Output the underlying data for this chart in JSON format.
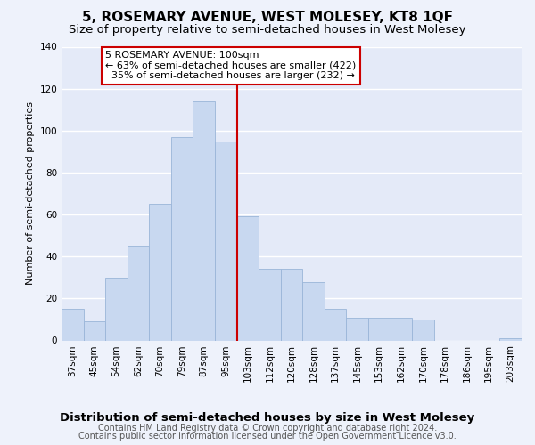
{
  "title": "5, ROSEMARY AVENUE, WEST MOLESEY, KT8 1QF",
  "subtitle": "Size of property relative to semi-detached houses in West Molesey",
  "xlabel": "Distribution of semi-detached houses by size in West Molesey",
  "ylabel": "Number of semi-detached properties",
  "footer_line1": "Contains HM Land Registry data © Crown copyright and database right 2024.",
  "footer_line2": "Contains public sector information licensed under the Open Government Licence v3.0.",
  "categories": [
    "37sqm",
    "45sqm",
    "54sqm",
    "62sqm",
    "70sqm",
    "79sqm",
    "87sqm",
    "95sqm",
    "103sqm",
    "112sqm",
    "120sqm",
    "128sqm",
    "137sqm",
    "145sqm",
    "153sqm",
    "162sqm",
    "170sqm",
    "178sqm",
    "186sqm",
    "195sqm",
    "203sqm"
  ],
  "values": [
    15,
    9,
    30,
    45,
    65,
    97,
    114,
    95,
    59,
    34,
    34,
    28,
    15,
    11,
    11,
    11,
    10,
    0,
    0,
    0,
    1
  ],
  "bar_color": "#c8d8f0",
  "bar_edge_color": "#9ab5d8",
  "marker_color": "#cc0000",
  "marker_label": "5 ROSEMARY AVENUE: 100sqm",
  "smaller_pct": 63,
  "smaller_count": 422,
  "larger_pct": 35,
  "larger_count": 232,
  "ylim": [
    0,
    140
  ],
  "yticks": [
    0,
    20,
    40,
    60,
    80,
    100,
    120,
    140
  ],
  "bg_color": "#eef2fb",
  "plot_bg_color": "#e4eaf8",
  "annotation_box_color": "#ffffff",
  "annotation_box_edge": "#cc0000",
  "grid_color": "#ffffff",
  "title_fontsize": 11,
  "subtitle_fontsize": 9.5,
  "xlabel_fontsize": 9.5,
  "ylabel_fontsize": 8,
  "tick_fontsize": 7.5,
  "annotation_fontsize": 8,
  "footer_fontsize": 7
}
